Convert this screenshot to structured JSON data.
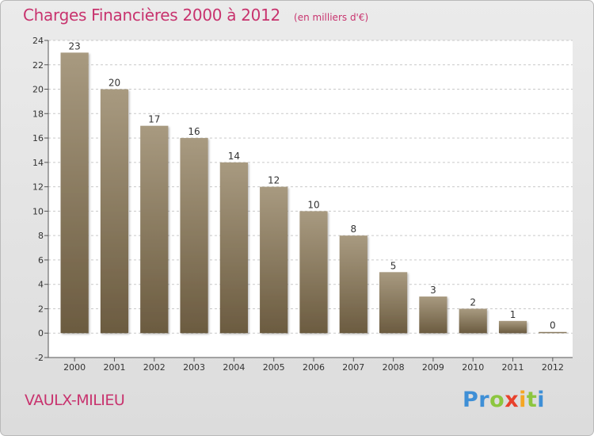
{
  "header": {
    "title": "Charges Financières 2000 à 2012",
    "subtitle": "(en milliers d'€)"
  },
  "footer": {
    "place_name": "VAULX-MILIEU",
    "logo_letters": [
      {
        "ch": "P",
        "color": "#3e8fd6"
      },
      {
        "ch": "r",
        "color": "#3e8fd6"
      },
      {
        "ch": "o",
        "color": "#8cc63f"
      },
      {
        "ch": "x",
        "color": "#e8412c"
      },
      {
        "ch": "i",
        "color": "#f5a623"
      },
      {
        "ch": "t",
        "color": "#8cc63f"
      },
      {
        "ch": "i",
        "color": "#3e8fd6"
      }
    ]
  },
  "chart_data": {
    "type": "bar",
    "title": "Charges Financières 2000 à 2012",
    "subtitle": "(en milliers d'€)",
    "categories": [
      "2000",
      "2001",
      "2002",
      "2003",
      "2004",
      "2005",
      "2006",
      "2007",
      "2008",
      "2009",
      "2010",
      "2011",
      "2012"
    ],
    "values": [
      23,
      20,
      17,
      16,
      14,
      12,
      10,
      8,
      5,
      3,
      2,
      1,
      0
    ],
    "data_labels": [
      "23",
      "20",
      "17",
      "16",
      "14",
      "12",
      "10",
      "8",
      "5",
      "3",
      "2",
      "1",
      "0"
    ],
    "ylim": [
      -2,
      24
    ],
    "yticks": [
      -2,
      0,
      2,
      4,
      6,
      8,
      10,
      12,
      14,
      16,
      18,
      20,
      22,
      24
    ],
    "xlabel": "",
    "ylabel": "",
    "grid": "horizontal-dashed",
    "bar_color_top": "#a89a80",
    "bar_color_bottom": "#6b5b40",
    "plot_background": "#ffffff",
    "label_color": "#333333",
    "accent_color": "#c8336e"
  }
}
